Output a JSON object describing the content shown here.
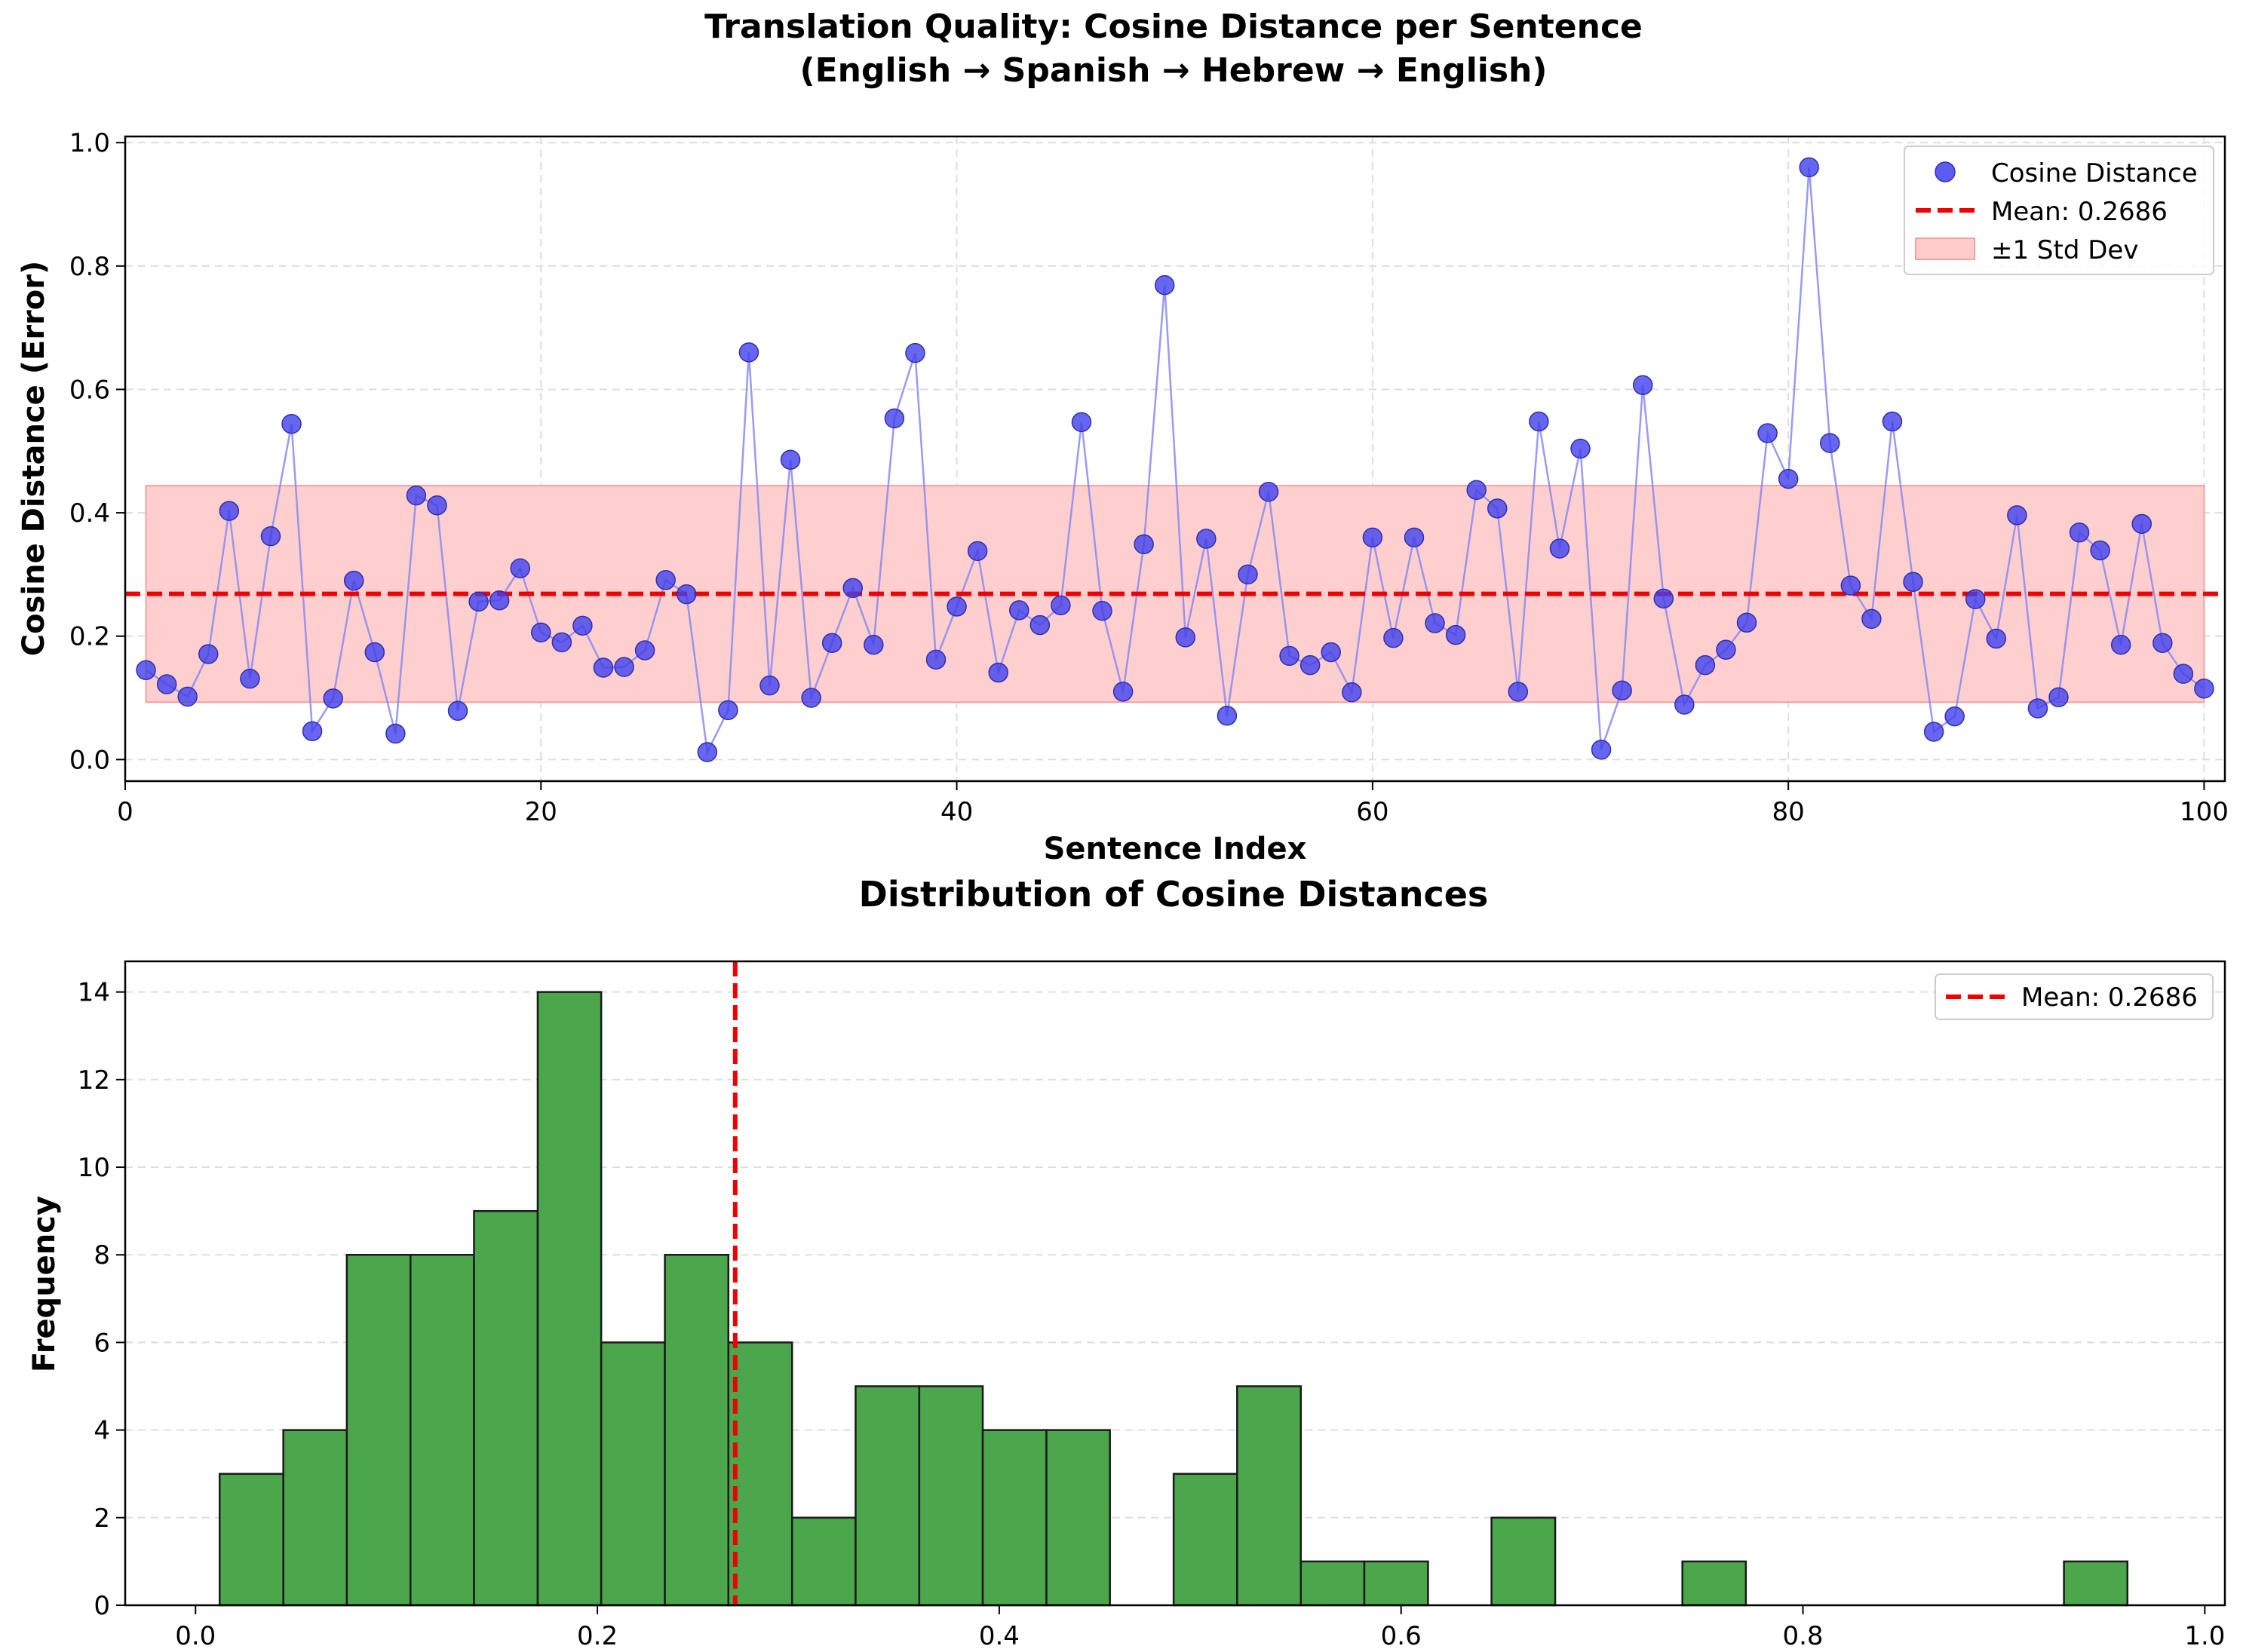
{
  "chart_data": [
    {
      "type": "scatter",
      "title_line1": "Translation Quality: Cosine Distance per Sentence",
      "title_line2": "(English → Spanish → Hebrew → English)",
      "xlabel": "Sentence Index",
      "ylabel": "Cosine Distance (Error)",
      "xlim": [
        0,
        101
      ],
      "ylim": [
        -0.035,
        1.01
      ],
      "xticks": [
        0,
        20,
        40,
        60,
        80,
        100
      ],
      "yticks": [
        "0.0",
        "0.2",
        "0.4",
        "0.6",
        "0.8",
        "1.0"
      ],
      "grid": true,
      "legend_position": "top-right",
      "legend": {
        "series": "Cosine Distance",
        "mean": "Mean: 0.2686",
        "band": "±1 Std Dev"
      },
      "mean": 0.2686,
      "std_band": [
        0.093,
        0.444
      ],
      "colors": {
        "points": "#4040ee",
        "line": "#8888ee",
        "mean": "#ee0000",
        "band": "#ffcccc"
      },
      "x": [
        1,
        2,
        3,
        4,
        5,
        6,
        7,
        8,
        9,
        10,
        11,
        12,
        13,
        14,
        15,
        16,
        17,
        18,
        19,
        20,
        21,
        22,
        23,
        24,
        25,
        26,
        27,
        28,
        29,
        30,
        31,
        32,
        33,
        34,
        35,
        36,
        37,
        38,
        39,
        40,
        41,
        42,
        43,
        44,
        45,
        46,
        47,
        48,
        49,
        50,
        51,
        52,
        53,
        54,
        55,
        56,
        57,
        58,
        59,
        60,
        61,
        62,
        63,
        64,
        65,
        66,
        67,
        68,
        69,
        70,
        71,
        72,
        73,
        74,
        75,
        76,
        77,
        78,
        79,
        80,
        81,
        82,
        83,
        84,
        85,
        86,
        87,
        88,
        89,
        90,
        91,
        92,
        93,
        94,
        95,
        96,
        97,
        98,
        99,
        100
      ],
      "y": [
        0.145,
        0.122,
        0.102,
        0.171,
        0.403,
        0.131,
        0.362,
        0.544,
        0.046,
        0.099,
        0.29,
        0.174,
        0.042,
        0.428,
        0.412,
        0.079,
        0.256,
        0.258,
        0.31,
        0.206,
        0.19,
        0.217,
        0.149,
        0.15,
        0.177,
        0.291,
        0.268,
        0.012,
        0.08,
        0.66,
        0.12,
        0.486,
        0.1,
        0.189,
        0.278,
        0.186,
        0.553,
        0.659,
        0.162,
        0.248,
        0.338,
        0.141,
        0.242,
        0.218,
        0.25,
        0.547,
        0.241,
        0.11,
        0.349,
        0.769,
        0.198,
        0.358,
        0.071,
        0.3,
        0.434,
        0.168,
        0.153,
        0.174,
        0.109,
        0.36,
        0.197,
        0.36,
        0.221,
        0.202,
        0.437,
        0.407,
        0.11,
        0.548,
        0.342,
        0.504,
        0.016,
        0.112,
        0.607,
        0.261,
        0.089,
        0.153,
        0.178,
        0.222,
        0.529,
        0.455,
        0.96,
        0.513,
        0.282,
        0.228,
        0.548,
        0.288,
        0.045,
        0.07,
        0.26,
        0.196,
        0.396,
        0.083,
        0.101,
        0.368,
        0.339,
        0.186,
        0.382,
        0.189,
        0.139,
        0.115
      ]
    },
    {
      "type": "bar",
      "title": "Distribution of Cosine Distances",
      "xlabel": "",
      "ylabel": "Frequency",
      "xlim": [
        -0.035,
        1.01
      ],
      "ylim": [
        0,
        14.7
      ],
      "xticks": [
        "0.0",
        "0.2",
        "0.4",
        "0.6",
        "0.8",
        "1.0"
      ],
      "yticks": [
        0,
        2,
        4,
        6,
        8,
        10,
        12,
        14
      ],
      "grid": true,
      "legend_position": "top-right",
      "legend": {
        "mean": "Mean: 0.2686"
      },
      "mean": 0.2686,
      "colors": {
        "bars": "#4ca64c",
        "edge": "#1a1a1a",
        "mean": "#ee0000"
      },
      "bin_edges": [
        0.012,
        0.0437,
        0.0753,
        0.107,
        0.1386,
        0.1703,
        0.2019,
        0.2336,
        0.2652,
        0.2969,
        0.3285,
        0.3602,
        0.3918,
        0.4235,
        0.4551,
        0.4868,
        0.5184,
        0.5501,
        0.5817,
        0.6134,
        0.645,
        0.6767,
        0.7083,
        0.74,
        0.7716,
        0.8033,
        0.8349,
        0.8666,
        0.8982,
        0.9299,
        0.9615
      ],
      "counts": [
        3,
        4,
        8,
        8,
        9,
        14,
        6,
        8,
        6,
        2,
        5,
        5,
        4,
        4,
        0,
        3,
        5,
        1,
        1,
        0,
        2,
        0,
        0,
        1,
        0,
        0,
        0,
        0,
        0,
        1
      ]
    }
  ]
}
